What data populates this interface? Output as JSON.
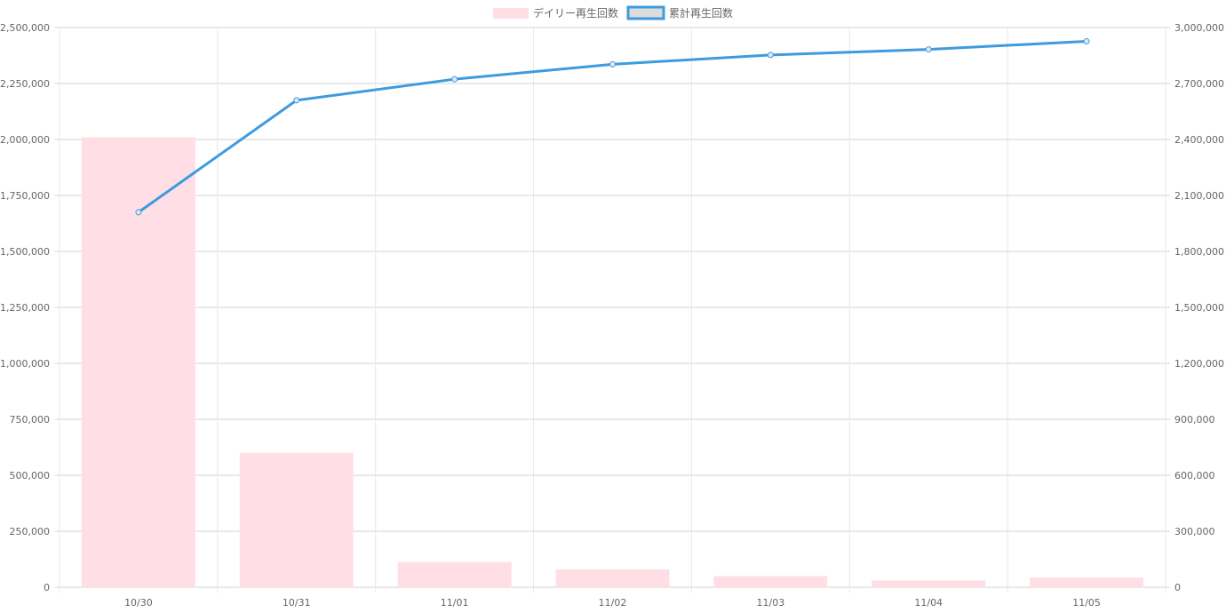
{
  "colors": {
    "bar_fill": "#ffdfe5",
    "line": "#3d9be0",
    "line_legend_fill": "#dcdcdc",
    "grid_h": "#d3d3d3",
    "grid_v": "#e8e8e8",
    "text": "#666666"
  },
  "chart_data": {
    "type": "bar",
    "categories": [
      "10/30",
      "10/31",
      "11/01",
      "11/02",
      "11/03",
      "11/04",
      "11/05"
    ],
    "series": [
      {
        "name": "デイリー再生回数",
        "type": "bar",
        "axis": "left",
        "values": [
          2010000,
          600000,
          113000,
          80000,
          50000,
          30000,
          43000
        ]
      },
      {
        "name": "累計再生回数",
        "type": "line",
        "axis": "right",
        "values": [
          2010000,
          2610000,
          2723000,
          2803000,
          2853000,
          2883000,
          2926000
        ]
      }
    ],
    "y_left": {
      "min": 0,
      "max": 2500000,
      "ticks": [
        "0",
        "250,000",
        "500,000",
        "750,000",
        "1,000,000",
        "1,250,000",
        "1,500,000",
        "1,750,000",
        "2,000,000",
        "2,250,000",
        "2,500,000"
      ]
    },
    "y_right": {
      "min": 0,
      "max": 3000000,
      "ticks": [
        "0",
        "300,000",
        "600,000",
        "900,000",
        "1,200,000",
        "1,500,000",
        "1,800,000",
        "2,100,000",
        "2,400,000",
        "2,700,000",
        "3,000,000"
      ]
    },
    "legend": "top-center",
    "grid": true
  }
}
